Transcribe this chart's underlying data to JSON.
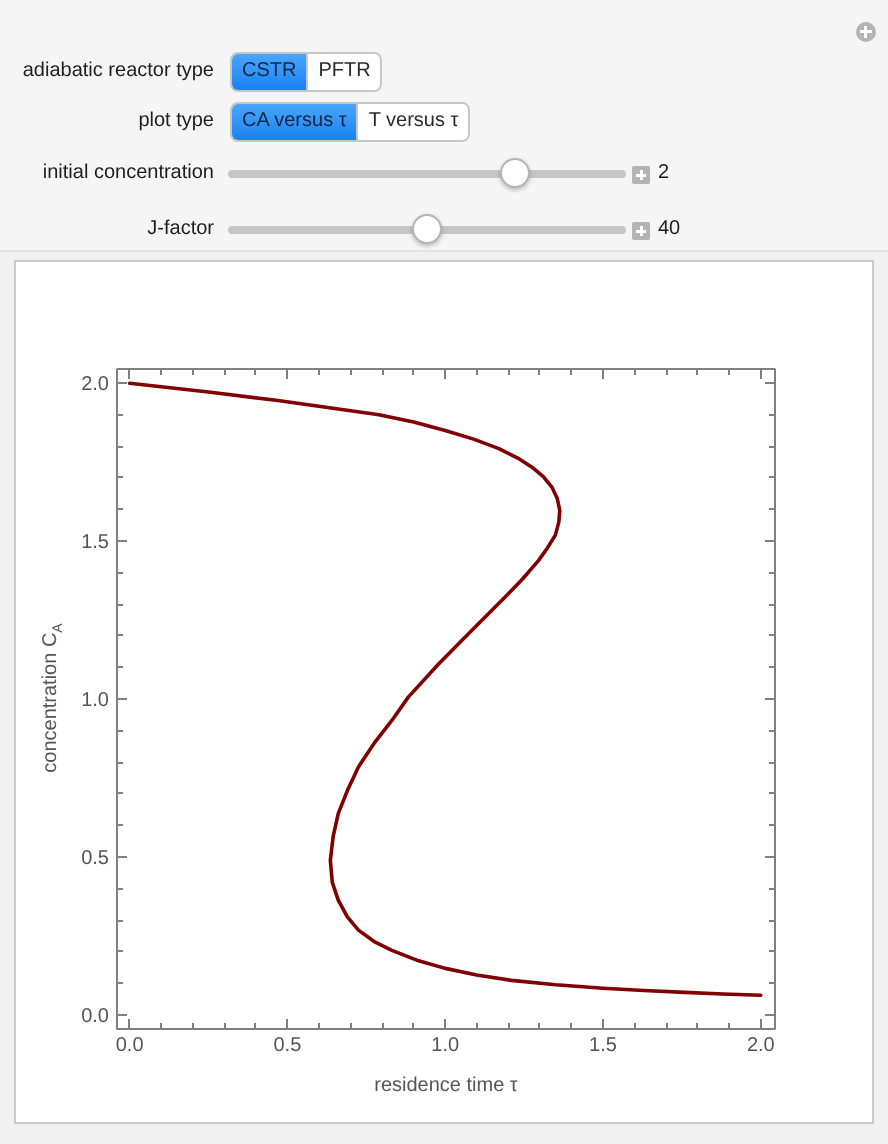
{
  "chart_data": [
    {
      "type": "other",
      "annotations": [
        "adiabatic reactor type",
        "CSTR",
        "PFTR",
        "plot type",
        "CA versus τ",
        "T versus τ",
        "initial concentration",
        "2",
        "J-factor",
        "40"
      ]
    },
    {
      "type": "line",
      "xlabel": "residence time τ",
      "ylabel": "concentration C$_{A}$",
      "color": "#800000",
      "x": [
        0,
        0.25,
        0.47,
        0.65,
        0.79,
        0.9,
        1.0,
        1.09,
        1.17,
        1.23,
        1.275,
        1.31,
        1.338,
        1.355,
        1.363,
        1.36,
        1.349,
        1.325,
        1.296,
        1.245,
        1.19,
        1.084,
        0.979,
        0.883,
        0.831,
        0.775,
        0.725,
        0.69,
        0.661,
        0.645,
        0.636,
        0.642,
        0.661,
        0.69,
        0.725,
        0.775,
        0.831,
        0.91,
        1.0,
        1.1,
        1.21,
        1.35,
        1.5,
        1.63,
        1.76,
        1.88,
        2.0
      ],
      "values": [
        2.0,
        1.972,
        1.945,
        1.92,
        1.9,
        1.877,
        1.85,
        1.823,
        1.793,
        1.763,
        1.734,
        1.705,
        1.671,
        1.635,
        1.597,
        1.56,
        1.519,
        1.48,
        1.439,
        1.38,
        1.323,
        1.217,
        1.111,
        1.006,
        0.932,
        0.86,
        0.785,
        0.71,
        0.637,
        0.565,
        0.489,
        0.42,
        0.363,
        0.31,
        0.268,
        0.232,
        0.204,
        0.173,
        0.147,
        0.126,
        0.109,
        0.095,
        0.084,
        0.077,
        0.071,
        0.066,
        0.062
      ],
      "xlim": [
        -0.04,
        2.045
      ],
      "ylim": [
        -0.045,
        2.045
      ],
      "xticks": [
        {
          "value": 0,
          "label": "0.0"
        },
        {
          "value": 0.1,
          "label": null
        },
        {
          "value": 0.2,
          "label": null
        },
        {
          "value": 0.3,
          "label": null
        },
        {
          "value": 0.4,
          "label": null
        },
        {
          "value": 0.5,
          "label": "0.5"
        },
        {
          "value": 0.6,
          "label": null
        },
        {
          "value": 0.7,
          "label": null
        },
        {
          "value": 0.8,
          "label": null
        },
        {
          "value": 0.9,
          "label": null
        },
        {
          "value": 1,
          "label": "1.0"
        },
        {
          "value": 1.1,
          "label": null
        },
        {
          "value": 1.2,
          "label": null
        },
        {
          "value": 1.3,
          "label": null
        },
        {
          "value": 1.4,
          "label": null
        },
        {
          "value": 1.5,
          "label": "1.5"
        },
        {
          "value": 1.6,
          "label": null
        },
        {
          "value": 1.7,
          "label": null
        },
        {
          "value": 1.8,
          "label": null
        },
        {
          "value": 1.9,
          "label": null
        },
        {
          "value": 2,
          "label": "2.0"
        }
      ],
      "yticks": [
        {
          "value": 0,
          "label": "0.0"
        },
        {
          "value": 0.1,
          "label": null
        },
        {
          "value": 0.2,
          "label": null
        },
        {
          "value": 0.3,
          "label": null
        },
        {
          "value": 0.4,
          "label": null
        },
        {
          "value": 0.5,
          "label": "0.5"
        },
        {
          "value": 0.6,
          "label": null
        },
        {
          "value": 0.7,
          "label": null
        },
        {
          "value": 0.8,
          "label": null
        },
        {
          "value": 0.9,
          "label": null
        },
        {
          "value": 1,
          "label": "1.0"
        },
        {
          "value": 1.1,
          "label": null
        },
        {
          "value": 1.2,
          "label": null
        },
        {
          "value": 1.3,
          "label": null
        },
        {
          "value": 1.4,
          "label": null
        },
        {
          "value": 1.5,
          "label": "1.5"
        },
        {
          "value": 1.6,
          "label": null
        },
        {
          "value": 1.7,
          "label": null
        },
        {
          "value": 1.8,
          "label": null
        },
        {
          "value": 1.9,
          "label": null
        },
        {
          "value": 2,
          "label": "2.0"
        }
      ]
    }
  ]
}
